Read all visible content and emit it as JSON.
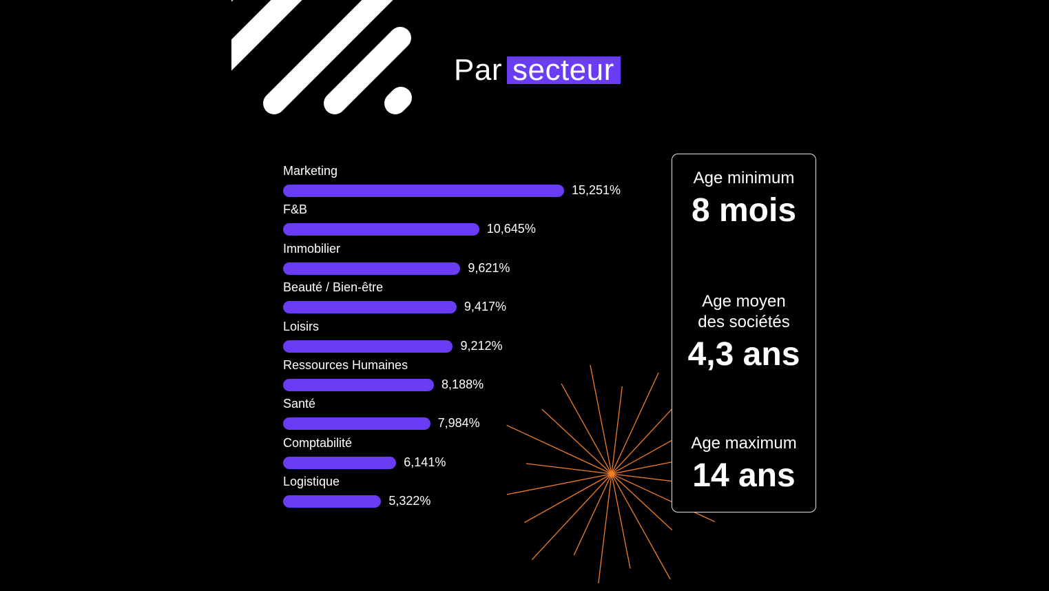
{
  "title": {
    "prefix": "Par",
    "highlight": "secteur"
  },
  "colors": {
    "background": "#000000",
    "accent": "#6a3cf4",
    "text": "#ffffff",
    "burst": "#f07e26"
  },
  "chart_data": {
    "type": "bar",
    "orientation": "horizontal",
    "title": "",
    "xlabel": "",
    "ylabel": "",
    "categories": [
      "Marketing",
      "F&B",
      "Immobilier",
      "Beauté / Bien-être",
      "Loisirs",
      "Ressources Humaines",
      "Santé",
      "Comptabilité",
      "Logistique"
    ],
    "values": [
      15.251,
      10.645,
      9.621,
      9.417,
      9.212,
      8.188,
      7.984,
      6.141,
      5.322
    ],
    "value_labels": [
      "15,251%",
      "10,645%",
      "9,621%",
      "9,417%",
      "9,212%",
      "8,188%",
      "7,984%",
      "6,141%",
      "5,322%"
    ],
    "unit": "%",
    "grid": false,
    "legend": "none"
  },
  "stats": [
    {
      "label": "Age minimum",
      "value": "8 mois"
    },
    {
      "label": "Age moyen\ndes sociétés",
      "value": "4,3 ans"
    },
    {
      "label": "Age maximum",
      "value": "14 ans"
    }
  ]
}
